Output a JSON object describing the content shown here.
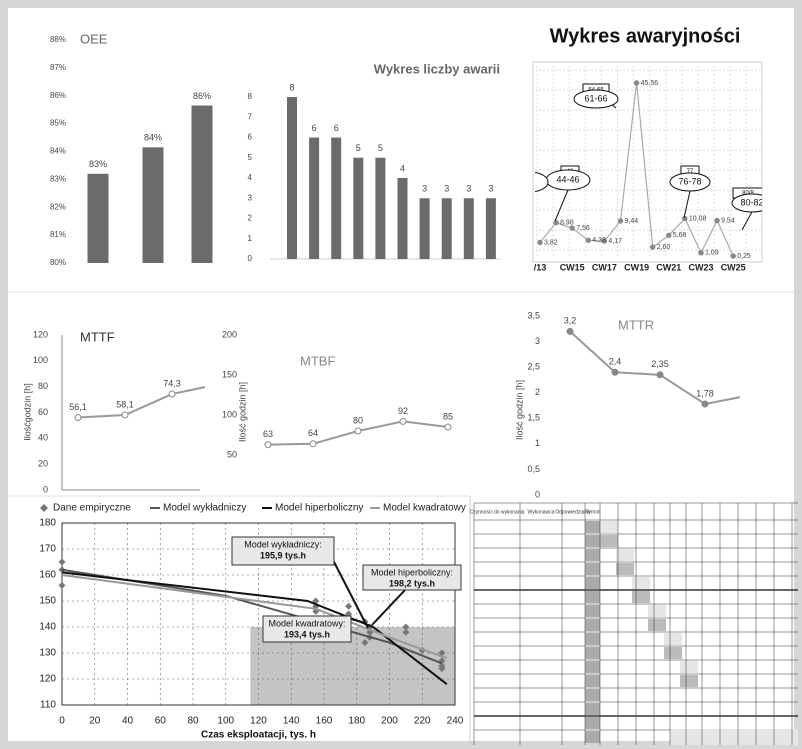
{
  "chart_data": [
    {
      "type": "bar",
      "title": "OEE",
      "values": [
        83.2,
        84.15,
        85.65
      ],
      "value_labels": [
        "83%",
        "84%",
        "86%"
      ],
      "color": "#6b6b6b",
      "ylim": [
        80,
        88
      ],
      "yticks": [
        {
          "value": 80,
          "label": "80%"
        },
        {
          "value": 81,
          "label": "81%"
        },
        {
          "value": 82,
          "label": "82%"
        },
        {
          "value": 83,
          "label": "83%"
        },
        {
          "value": 84,
          "label": "84%"
        },
        {
          "value": 85,
          "label": "85%"
        },
        {
          "value": 86,
          "label": "86%"
        },
        {
          "value": 87,
          "label": "87%"
        },
        {
          "value": 88,
          "label": "88%"
        }
      ]
    },
    {
      "type": "bar",
      "title": "Wykres liczby awarii",
      "values": [
        8,
        6,
        6,
        5,
        5,
        4,
        3,
        3,
        3,
        3
      ],
      "color": "#6b6b6b",
      "ylim": [
        0,
        8
      ],
      "yticks": [
        0,
        1,
        2,
        3,
        4,
        5,
        6,
        7,
        8
      ]
    },
    {
      "type": "line",
      "title": "Wykres awaryjności",
      "categories": [
        "/13",
        null,
        "CW15",
        null,
        "CW17",
        null,
        "CW19",
        null,
        "CW21",
        null,
        "CW23",
        null,
        "CW25"
      ],
      "values": [
        3.82,
        8.98,
        7.56,
        4.38,
        4.17,
        9.44,
        45.56,
        2.6,
        5.68,
        10.08,
        1.09,
        9.54,
        0.25
      ],
      "value_labels": [
        "3,82",
        "8,98",
        "7,56",
        "4,38",
        "4,17",
        "9,44",
        "45,56",
        "2,60",
        "5,68",
        "10,08",
        "1,09",
        "9,54",
        "0,25"
      ],
      "color": "#aaaaaa",
      "ylim": [
        0,
        50
      ],
      "grid": true,
      "annotations": [
        {
          "box": "64-65",
          "ellipse": "61-66"
        },
        {
          "box": "46",
          "ellipse": "44-46"
        },
        {
          "box": "77",
          "ellipse": "76-78"
        },
        {
          "box": "80/8",
          "ellipse": "80-82"
        }
      ]
    },
    {
      "type": "line",
      "title": "MTTF",
      "y_label": "Ilośćgodzin [h]",
      "values": [
        56.1,
        58.1,
        74.3,
        82
      ],
      "value_labels": [
        "56,1",
        "58,1",
        "74,3",
        null
      ],
      "color": "#999999",
      "ylim": [
        0,
        120
      ],
      "yticks": [
        0,
        20,
        40,
        60,
        80,
        100,
        120
      ]
    },
    {
      "type": "line",
      "title": "MTBF",
      "y_label": "Ilość godzin [h]",
      "values": [
        63,
        64,
        80,
        92,
        85
      ],
      "color": "#999999",
      "ylim": [
        0,
        200
      ],
      "yticks": [
        50,
        100,
        150,
        200
      ]
    },
    {
      "type": "line",
      "title": "MTTR",
      "y_label": "Ilość godzin [h]",
      "values": [
        3.2,
        2.4,
        2.35,
        1.78,
        1.95
      ],
      "value_labels": [
        "3,2",
        "2,4",
        "2,35",
        "1,78",
        null
      ],
      "color": "#999999",
      "ylim": [
        0,
        3.5
      ],
      "yticks": [
        0,
        {
          "value": 0.5,
          "label": "0,5"
        },
        1,
        {
          "value": 1.5,
          "label": "1,5"
        },
        2,
        {
          "value": 2.5,
          "label": "2,5"
        },
        3,
        {
          "value": 3.5,
          "label": "3,5"
        }
      ]
    },
    {
      "type": "scatter",
      "x_label": "Czas eksploatacji, tys. h",
      "xlim": [
        0,
        240
      ],
      "xticks": [
        0,
        20,
        40,
        60,
        80,
        100,
        120,
        140,
        160,
        180,
        200,
        220,
        240
      ],
      "ylim": [
        110,
        180
      ],
      "yticks": [
        110,
        120,
        130,
        140,
        150,
        160,
        170,
        180
      ],
      "grid": true,
      "highlight": {
        "xlim": [
          115,
          240
        ],
        "ylim": [
          110,
          140
        ]
      },
      "series": [
        {
          "name": "Dane empiryczne",
          "color": "#777777",
          "style": "markers",
          "x": [
            0,
            0,
            0,
            155,
            155,
            155,
            175,
            175,
            185,
            188,
            188,
            188,
            185,
            210,
            210,
            220,
            232,
            232,
            232,
            232
          ],
          "values": [
            165,
            162,
            156,
            150,
            148,
            146,
            148,
            145,
            142,
            140,
            138,
            136,
            134,
            140,
            138,
            131,
            130,
            127,
            125,
            124
          ]
        },
        {
          "name": "Model wykładniczy",
          "color": "#555555",
          "style": "line",
          "x": [
            0,
            100,
            200,
            232
          ],
          "values": [
            162,
            152,
            134,
            126
          ]
        },
        {
          "name": "Model hiperboliczny",
          "color": "#111111",
          "style": "line",
          "x": [
            0,
            150,
            190,
            235
          ],
          "values": [
            161,
            150,
            140,
            118
          ]
        },
        {
          "name": "Model kwadratowy",
          "color": "#999999",
          "style": "line",
          "x": [
            0,
            155,
            200,
            235
          ],
          "values": [
            160,
            147,
            136,
            128
          ]
        }
      ],
      "annotations": [
        {
          "label": "Model wykładniczy:",
          "value_text": "195,9 tys.h"
        },
        {
          "label": "Model hiperboliczny:",
          "value_text": "198,2 tys.h"
        },
        {
          "label": "Model kwadratowy:",
          "value_text": "193,4 tys.h"
        }
      ]
    }
  ],
  "table": {
    "headers": [
      "Czynności do wykonania",
      "Wykonawca",
      "Odpowiedzialny",
      "Termin"
    ]
  }
}
